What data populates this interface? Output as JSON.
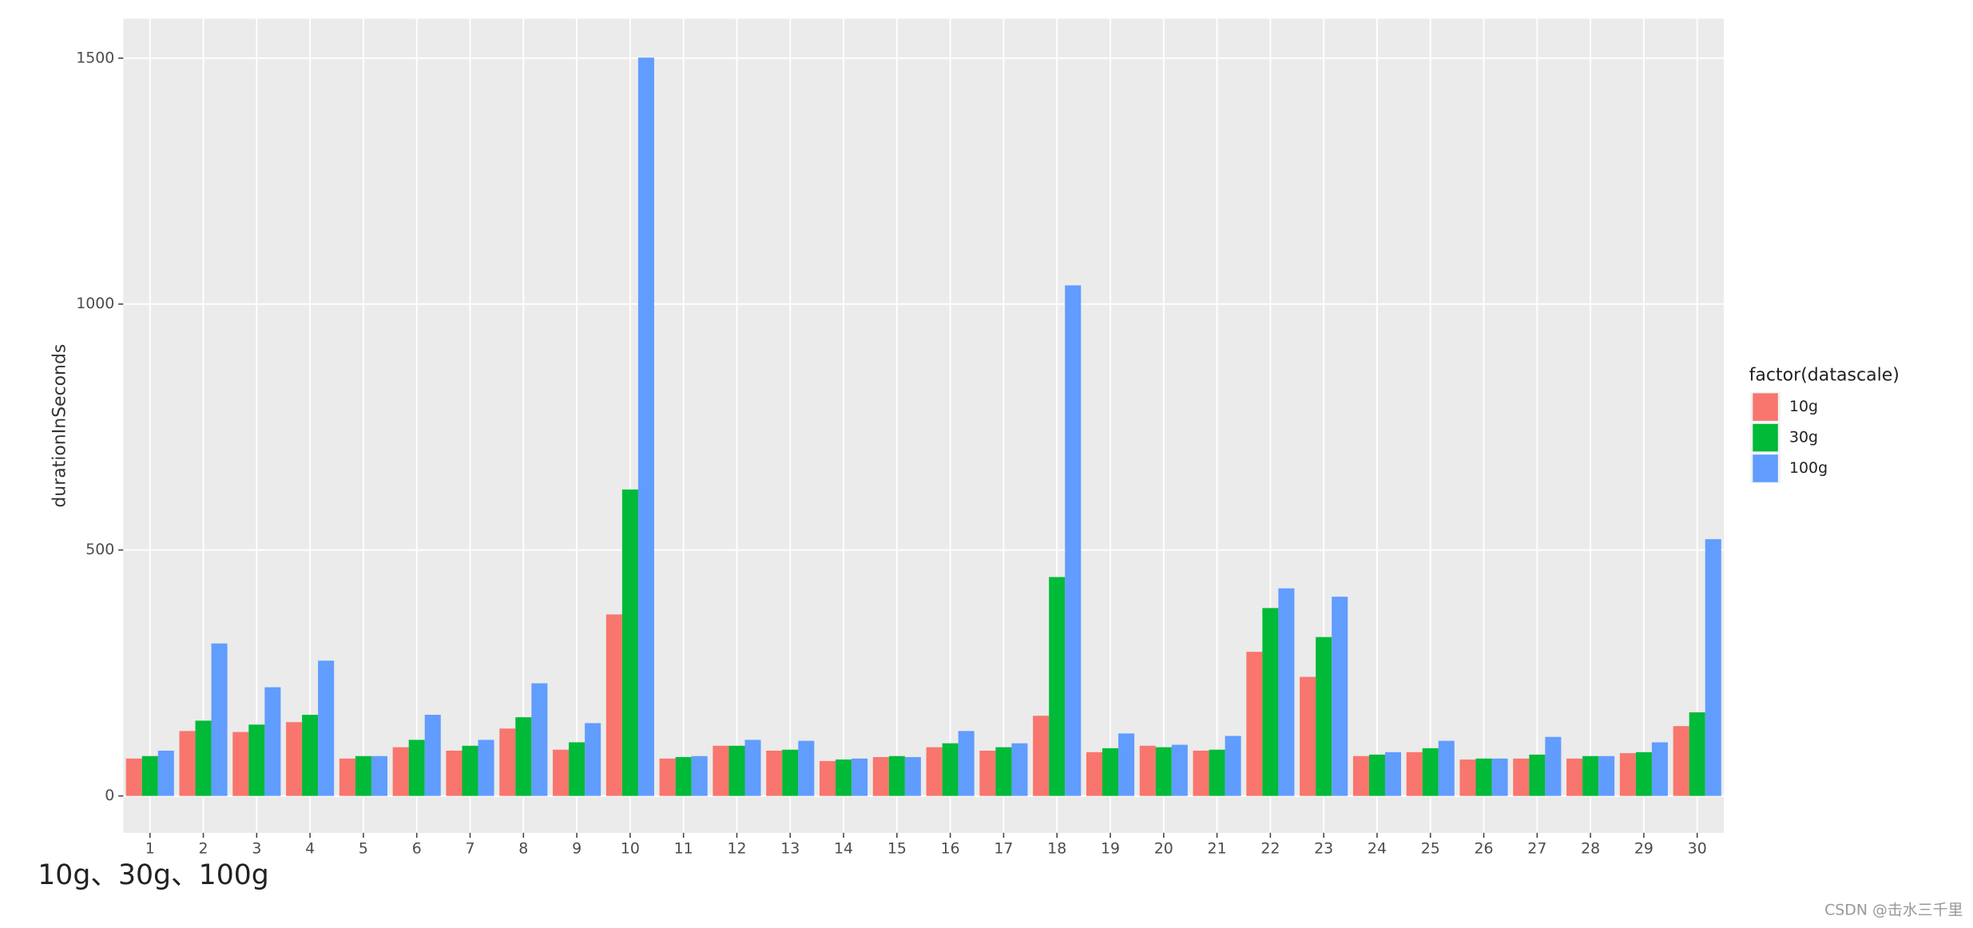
{
  "chart_data": {
    "type": "bar",
    "y_label": "durationInSeconds",
    "legend_title": "factor(datascale)",
    "caption": "10g、30g、100g",
    "watermark": "CSDN @击水三千里",
    "categories": [
      "1",
      "2",
      "3",
      "4",
      "5",
      "6",
      "7",
      "8",
      "9",
      "10",
      "11",
      "12",
      "13",
      "14",
      "15",
      "16",
      "17",
      "18",
      "19",
      "20",
      "21",
      "22",
      "23",
      "24",
      "25",
      "26",
      "27",
      "28",
      "29",
      "30"
    ],
    "series": [
      {
        "name": "10g",
        "color": "#F8766D",
        "values": [
          76,
          132,
          130,
          150,
          76,
          99,
          92,
          137,
          94,
          369,
          76,
          102,
          92,
          71,
          79,
          99,
          92,
          163,
          89,
          102,
          92,
          293,
          242,
          81,
          89,
          74,
          76,
          76,
          87,
          142
        ]
      },
      {
        "name": "30g",
        "color": "#00BA38",
        "values": [
          81,
          153,
          145,
          165,
          81,
          114,
          102,
          160,
          109,
          623,
          79,
          102,
          94,
          74,
          81,
          107,
          99,
          445,
          97,
          99,
          94,
          382,
          323,
          84,
          97,
          76,
          84,
          81,
          89,
          170
        ]
      },
      {
        "name": "100g",
        "color": "#619CFF",
        "values": [
          92,
          310,
          221,
          275,
          81,
          165,
          114,
          229,
          148,
          1501,
          81,
          114,
          112,
          76,
          79,
          132,
          107,
          1038,
          127,
          104,
          122,
          422,
          405,
          89,
          112,
          76,
          120,
          81,
          109,
          522
        ]
      }
    ],
    "ylim": [
      -75,
      1580
    ],
    "yticks": [
      0,
      500,
      1000,
      1500
    ],
    "grid": true,
    "legend": "right"
  }
}
